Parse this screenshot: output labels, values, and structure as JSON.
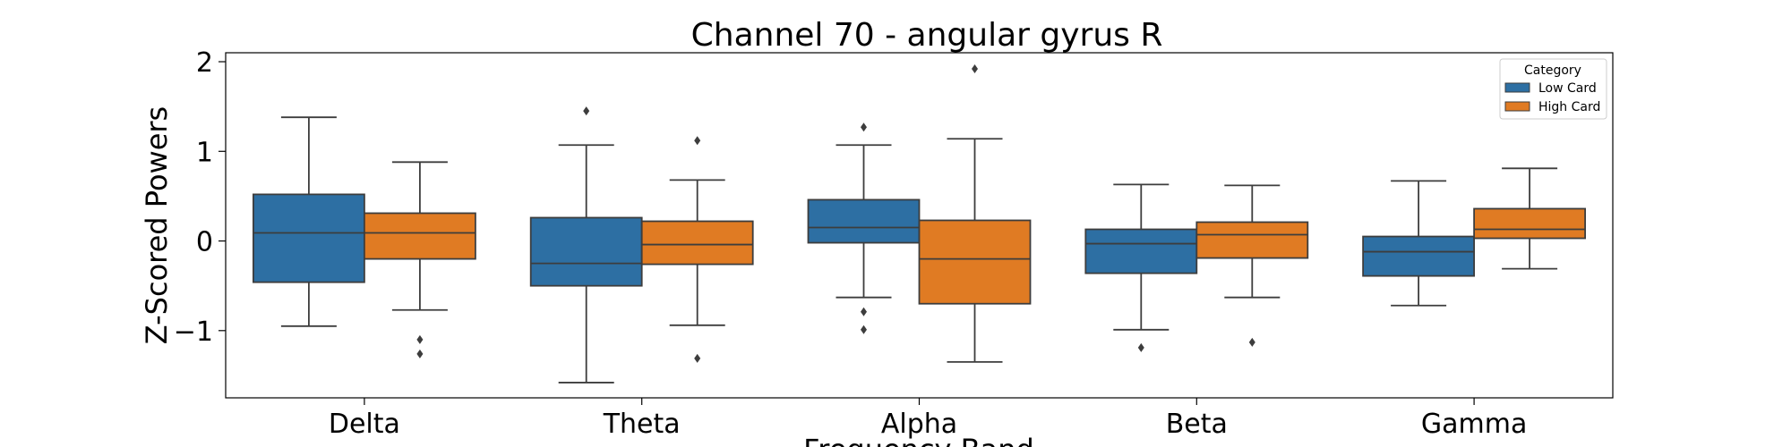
{
  "chart_data": {
    "type": "box",
    "title": "Channel 70 - angular gyrus R",
    "xlabel": "Frequency Band",
    "ylabel": "Z-Scored Powers",
    "categories": [
      "Delta",
      "Theta",
      "Alpha",
      "Beta",
      "Gamma"
    ],
    "ylim": [
      -1.75,
      2.1
    ],
    "yticks": [
      -1,
      0,
      1,
      2
    ],
    "ytick_labels": [
      "−1",
      "0",
      "1",
      "2"
    ],
    "grid": false,
    "legend": {
      "title": "Category",
      "position": "top-right"
    },
    "series": [
      {
        "name": "Low Card",
        "color": "#2d6fa3",
        "boxes": [
          {
            "whislo": -0.95,
            "q1": -0.46,
            "med": 0.09,
            "q3": 0.52,
            "whishi": 1.38,
            "fliers": []
          },
          {
            "whislo": -1.58,
            "q1": -0.5,
            "med": -0.25,
            "q3": 0.26,
            "whishi": 1.07,
            "fliers": [
              1.45
            ]
          },
          {
            "whislo": -0.63,
            "q1": -0.02,
            "med": 0.15,
            "q3": 0.46,
            "whishi": 1.07,
            "fliers": [
              1.27,
              -0.79,
              -0.99
            ]
          },
          {
            "whislo": -0.99,
            "q1": -0.36,
            "med": -0.03,
            "q3": 0.13,
            "whishi": 0.63,
            "fliers": [
              -1.19
            ]
          },
          {
            "whislo": -0.72,
            "q1": -0.39,
            "med": -0.12,
            "q3": 0.05,
            "whishi": 0.67,
            "fliers": []
          }
        ]
      },
      {
        "name": "High Card",
        "color": "#e07b23",
        "boxes": [
          {
            "whislo": -0.77,
            "q1": -0.2,
            "med": 0.09,
            "q3": 0.31,
            "whishi": 0.88,
            "fliers": [
              -1.1,
              -1.26
            ]
          },
          {
            "whislo": -0.94,
            "q1": -0.26,
            "med": -0.04,
            "q3": 0.22,
            "whishi": 0.68,
            "fliers": [
              1.12,
              -1.31
            ]
          },
          {
            "whislo": -1.35,
            "q1": -0.7,
            "med": -0.2,
            "q3": 0.23,
            "whishi": 1.14,
            "fliers": [
              1.92
            ]
          },
          {
            "whislo": -0.63,
            "q1": -0.19,
            "med": 0.07,
            "q3": 0.21,
            "whishi": 0.62,
            "fliers": [
              -1.13
            ]
          },
          {
            "whislo": -0.31,
            "q1": 0.03,
            "med": 0.13,
            "q3": 0.36,
            "whishi": 0.81,
            "fliers": []
          }
        ]
      }
    ]
  }
}
